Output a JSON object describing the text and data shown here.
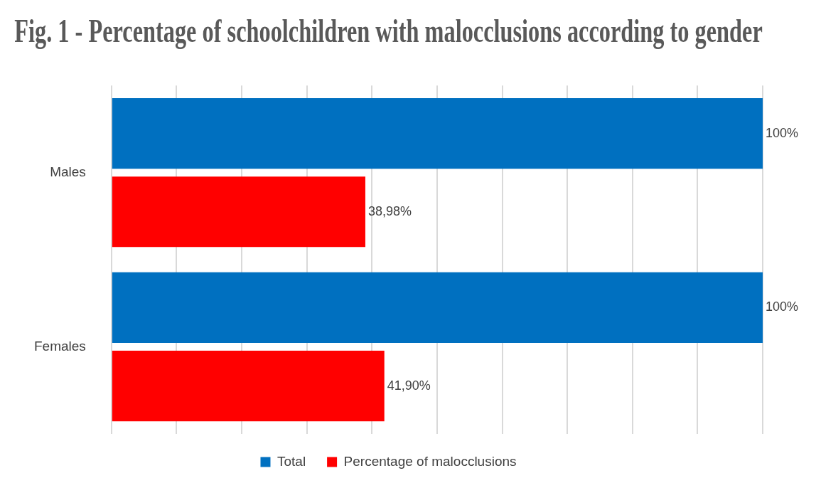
{
  "chart_data": {
    "type": "bar",
    "orientation": "horizontal",
    "title": "Fig. 1 - Percentage of schoolchildren with malocclusions according to gender",
    "categories": [
      "Males",
      "Females"
    ],
    "series": [
      {
        "name": "Total",
        "color": "#0070c0",
        "values": [
          100,
          100
        ],
        "value_labels": [
          "100%",
          "100%"
        ]
      },
      {
        "name": "Percentage of malocclusions",
        "color": "#ff0000",
        "values": [
          38.98,
          41.9
        ],
        "value_labels": [
          "38,98%",
          "41,90%"
        ]
      }
    ],
    "xlim": [
      0,
      100
    ],
    "xticks": [
      {
        "value": 0,
        "label": null
      },
      {
        "value": 10,
        "label": null
      },
      {
        "value": 20,
        "label": null
      },
      {
        "value": 30,
        "label": null
      },
      {
        "value": 40,
        "label": null
      },
      {
        "value": 50,
        "label": null
      },
      {
        "value": 60,
        "label": null
      },
      {
        "value": 70,
        "label": null
      },
      {
        "value": 80,
        "label": null
      },
      {
        "value": 90,
        "label": null
      },
      {
        "value": 100,
        "label": null
      }
    ],
    "grid": "x",
    "tick_labels": "y",
    "legend": "bottom"
  }
}
